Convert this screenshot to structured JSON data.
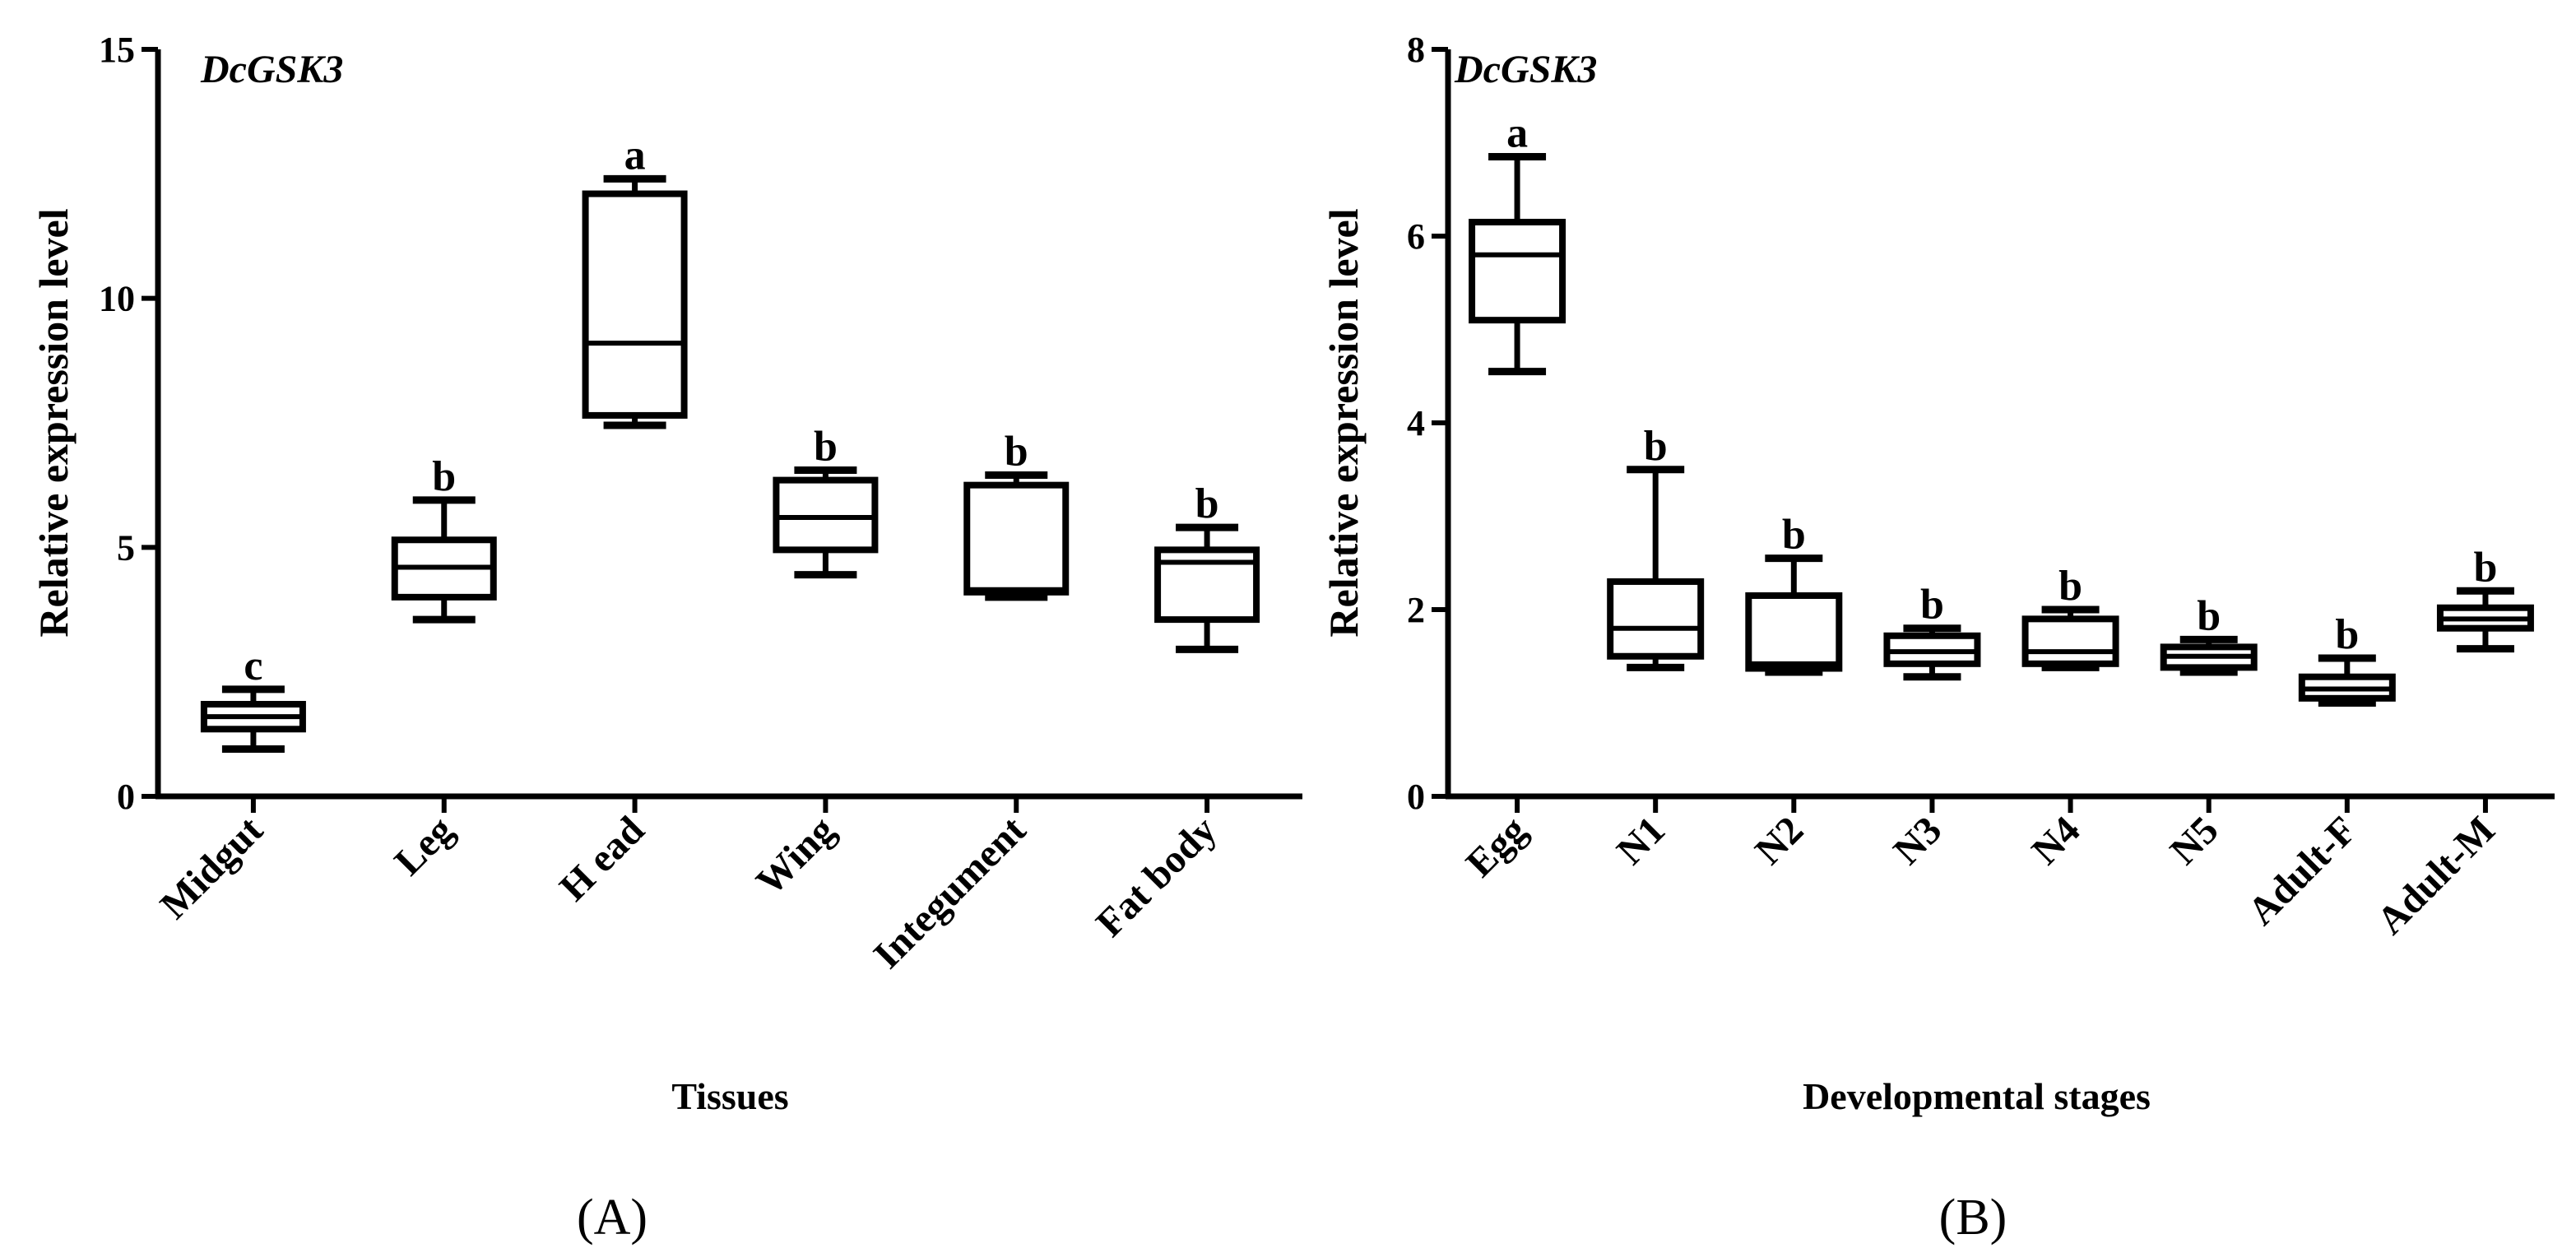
{
  "chart_data": [
    {
      "type": "boxplot",
      "panel_label": "(A)",
      "title": "DcGSK3",
      "xlabel": "Tissues",
      "ylabel": "Relative expression level",
      "ylim": [
        0,
        15
      ],
      "yticks": [
        0,
        5,
        10,
        15
      ],
      "categories": [
        "Midgut",
        "Leg",
        "H ead",
        "Wing",
        "Integument",
        "Fat body"
      ],
      "boxes": [
        {
          "min": 0.95,
          "q1": 1.35,
          "median": 1.6,
          "q3": 1.85,
          "max": 2.15,
          "label": "c"
        },
        {
          "min": 3.55,
          "q1": 4.0,
          "median": 4.6,
          "q3": 5.15,
          "max": 5.95,
          "label": "b"
        },
        {
          "min": 7.45,
          "q1": 7.65,
          "median": 9.1,
          "q3": 12.1,
          "max": 12.4,
          "label": "a"
        },
        {
          "min": 4.45,
          "q1": 4.95,
          "median": 5.6,
          "q3": 6.35,
          "max": 6.55,
          "label": "b"
        },
        {
          "min": 4.0,
          "q1": 4.1,
          "median": 4.15,
          "q3": 6.25,
          "max": 6.45,
          "label": "b"
        },
        {
          "min": 2.95,
          "q1": 3.55,
          "median": 4.7,
          "q3": 4.95,
          "max": 5.4,
          "label": "b"
        }
      ]
    },
    {
      "type": "boxplot",
      "panel_label": "(B)",
      "title": "DcGSK3",
      "xlabel": "Developmental stages",
      "ylabel": "Relative expression level",
      "ylim": [
        0,
        8
      ],
      "yticks": [
        0,
        2,
        4,
        6,
        8
      ],
      "categories": [
        "Egg",
        "N1",
        "N2",
        "N3",
        "N4",
        "N5",
        "Adult-F",
        "Adult-M"
      ],
      "boxes": [
        {
          "min": 4.55,
          "q1": 5.1,
          "median": 5.8,
          "q3": 6.15,
          "max": 6.85,
          "label": "a"
        },
        {
          "min": 1.38,
          "q1": 1.5,
          "median": 1.8,
          "q3": 2.3,
          "max": 3.5,
          "label": "b"
        },
        {
          "min": 1.33,
          "q1": 1.37,
          "median": 1.42,
          "q3": 2.15,
          "max": 2.55,
          "label": "b"
        },
        {
          "min": 1.28,
          "q1": 1.42,
          "median": 1.55,
          "q3": 1.72,
          "max": 1.8,
          "label": "b"
        },
        {
          "min": 1.38,
          "q1": 1.42,
          "median": 1.55,
          "q3": 1.9,
          "max": 2.0,
          "label": "b"
        },
        {
          "min": 1.33,
          "q1": 1.38,
          "median": 1.5,
          "q3": 1.6,
          "max": 1.68,
          "label": "b"
        },
        {
          "min": 1.0,
          "q1": 1.05,
          "median": 1.15,
          "q3": 1.28,
          "max": 1.48,
          "label": "b"
        },
        {
          "min": 1.58,
          "q1": 1.8,
          "median": 1.9,
          "q3": 2.02,
          "max": 2.2,
          "label": "b"
        }
      ]
    }
  ]
}
